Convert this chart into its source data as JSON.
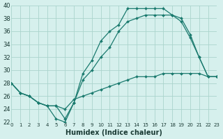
{
  "title": "",
  "xlabel": "Humidex (Indice chaleur)",
  "ylabel": "",
  "bg_color": "#d6f0ed",
  "grid_color": "#aad4cc",
  "line_color": "#1a7a6e",
  "xlim": [
    0,
    23
  ],
  "ylim": [
    22,
    40
  ],
  "xticks": [
    0,
    1,
    2,
    3,
    4,
    5,
    6,
    7,
    8,
    9,
    10,
    11,
    12,
    13,
    14,
    15,
    16,
    17,
    18,
    19,
    20,
    21,
    22,
    23
  ],
  "yticks": [
    22,
    24,
    26,
    28,
    30,
    32,
    34,
    36,
    38,
    40
  ],
  "line1_x": [
    0,
    1,
    2,
    3,
    4,
    5,
    6,
    7,
    8,
    9,
    10,
    11,
    12,
    13,
    14,
    15,
    16,
    17,
    18,
    19,
    20,
    21,
    22,
    23
  ],
  "line1_y": [
    28,
    26.5,
    26,
    25,
    24.5,
    22.5,
    22,
    25,
    29.5,
    31.5,
    34.5,
    36,
    37,
    39.5,
    39.5,
    39.5,
    39.5,
    39.5,
    38.5,
    38,
    35.5,
    32,
    29,
    29
  ],
  "line2_x": [
    0,
    1,
    2,
    3,
    4,
    5,
    6,
    7,
    8,
    9,
    10,
    11,
    12,
    13,
    14,
    15,
    16,
    17,
    18,
    19,
    20,
    21,
    22,
    23
  ],
  "line2_y": [
    28,
    26.5,
    26,
    25,
    24.5,
    24.5,
    22.5,
    25,
    28.5,
    30,
    32,
    33.5,
    36,
    37.5,
    38,
    38.5,
    38.5,
    38.5,
    38.5,
    37.5,
    35,
    32,
    29,
    29
  ],
  "line3_x": [
    0,
    1,
    2,
    3,
    4,
    5,
    6,
    7,
    8,
    9,
    10,
    11,
    12,
    13,
    14,
    15,
    16,
    17,
    18,
    19,
    20,
    21,
    22,
    23
  ],
  "line3_y": [
    28,
    26.5,
    26,
    25,
    24.5,
    24.5,
    24,
    25.5,
    26,
    26.5,
    27,
    27.5,
    28,
    28.5,
    29,
    29,
    29,
    29.5,
    29.5,
    29.5,
    29.5,
    29.5,
    29,
    29
  ]
}
